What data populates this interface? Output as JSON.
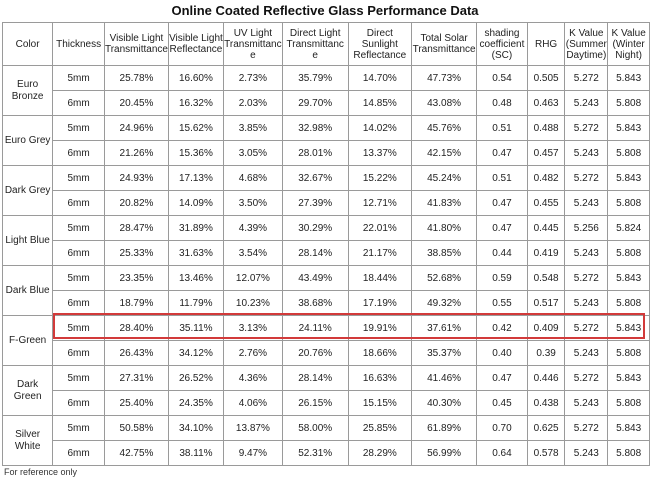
{
  "title": "Online Coated Reflective Glass Performance Data",
  "headers": [
    "Color",
    "Thickness",
    "Visible Light Transmittance",
    "Visible Light Reflectance",
    "UV Light Transmittanc e",
    "Direct Light Transmittanc e",
    "Direct Sunlight Reflectance",
    "Total Solar Transmittance",
    "shading coefficient (SC)",
    "RHG",
    "K Value (Summer Daytime)",
    "K Value (Winter Night)"
  ],
  "groups": [
    {
      "color": "Euro Bronze",
      "rows": [
        [
          "5mm",
          "25.78%",
          "16.60%",
          "2.73%",
          "35.79%",
          "14.70%",
          "47.73%",
          "0.54",
          "0.505",
          "5.272",
          "5.843"
        ],
        [
          "6mm",
          "20.45%",
          "16.32%",
          "2.03%",
          "29.70%",
          "14.85%",
          "43.08%",
          "0.48",
          "0.463",
          "5.243",
          "5.808"
        ]
      ]
    },
    {
      "color": "Euro Grey",
      "rows": [
        [
          "5mm",
          "24.96%",
          "15.62%",
          "3.85%",
          "32.98%",
          "14.02%",
          "45.76%",
          "0.51",
          "0.488",
          "5.272",
          "5.843"
        ],
        [
          "6mm",
          "21.26%",
          "15.36%",
          "3.05%",
          "28.01%",
          "13.37%",
          "42.15%",
          "0.47",
          "0.457",
          "5.243",
          "5.808"
        ]
      ]
    },
    {
      "color": "Dark Grey",
      "rows": [
        [
          "5mm",
          "24.93%",
          "17.13%",
          "4.68%",
          "32.67%",
          "15.22%",
          "45.24%",
          "0.51",
          "0.482",
          "5.272",
          "5.843"
        ],
        [
          "6mm",
          "20.82%",
          "14.09%",
          "3.50%",
          "27.39%",
          "12.71%",
          "41.83%",
          "0.47",
          "0.455",
          "5.243",
          "5.808"
        ]
      ]
    },
    {
      "color": "Light Blue",
      "rows": [
        [
          "5mm",
          "28.47%",
          "31.89%",
          "4.39%",
          "30.29%",
          "22.01%",
          "41.80%",
          "0.47",
          "0.445",
          "5.256",
          "5.824"
        ],
        [
          "6mm",
          "25.33%",
          "31.63%",
          "3.54%",
          "28.14%",
          "21.17%",
          "38.85%",
          "0.44",
          "0.419",
          "5.243",
          "5.808"
        ]
      ]
    },
    {
      "color": "Dark Blue",
      "rows": [
        [
          "5mm",
          "23.35%",
          "13.46%",
          "12.07%",
          "43.49%",
          "18.44%",
          "52.68%",
          "0.59",
          "0.548",
          "5.272",
          "5.843"
        ],
        [
          "6mm",
          "18.79%",
          "11.79%",
          "10.23%",
          "38.68%",
          "17.19%",
          "49.32%",
          "0.55",
          "0.517",
          "5.243",
          "5.808"
        ]
      ]
    },
    {
      "color": "F-Green",
      "rows": [
        [
          "5mm",
          "28.40%",
          "35.11%",
          "3.13%",
          "24.11%",
          "19.91%",
          "37.61%",
          "0.42",
          "0.409",
          "5.272",
          "5.843"
        ],
        [
          "6mm",
          "26.43%",
          "34.12%",
          "2.76%",
          "20.76%",
          "18.66%",
          "35.37%",
          "0.40",
          "0.39",
          "5.243",
          "5.808"
        ]
      ]
    },
    {
      "color": "Dark Green",
      "rows": [
        [
          "5mm",
          "27.31%",
          "26.52%",
          "4.36%",
          "28.14%",
          "16.63%",
          "41.46%",
          "0.47",
          "0.446",
          "5.272",
          "5.843"
        ],
        [
          "6mm",
          "25.40%",
          "24.35%",
          "4.06%",
          "26.15%",
          "15.15%",
          "40.30%",
          "0.45",
          "0.438",
          "5.243",
          "5.808"
        ]
      ]
    },
    {
      "color": "Silver White",
      "rows": [
        [
          "5mm",
          "50.58%",
          "34.10%",
          "13.87%",
          "58.00%",
          "25.85%",
          "61.89%",
          "0.70",
          "0.625",
          "5.272",
          "5.843"
        ],
        [
          "6mm",
          "42.75%",
          "38.11%",
          "9.47%",
          "52.31%",
          "28.29%",
          "56.99%",
          "0.64",
          "0.578",
          "5.243",
          "5.808"
        ]
      ]
    }
  ],
  "highlight_color": "#d23a3a",
  "footnote": "For reference only"
}
